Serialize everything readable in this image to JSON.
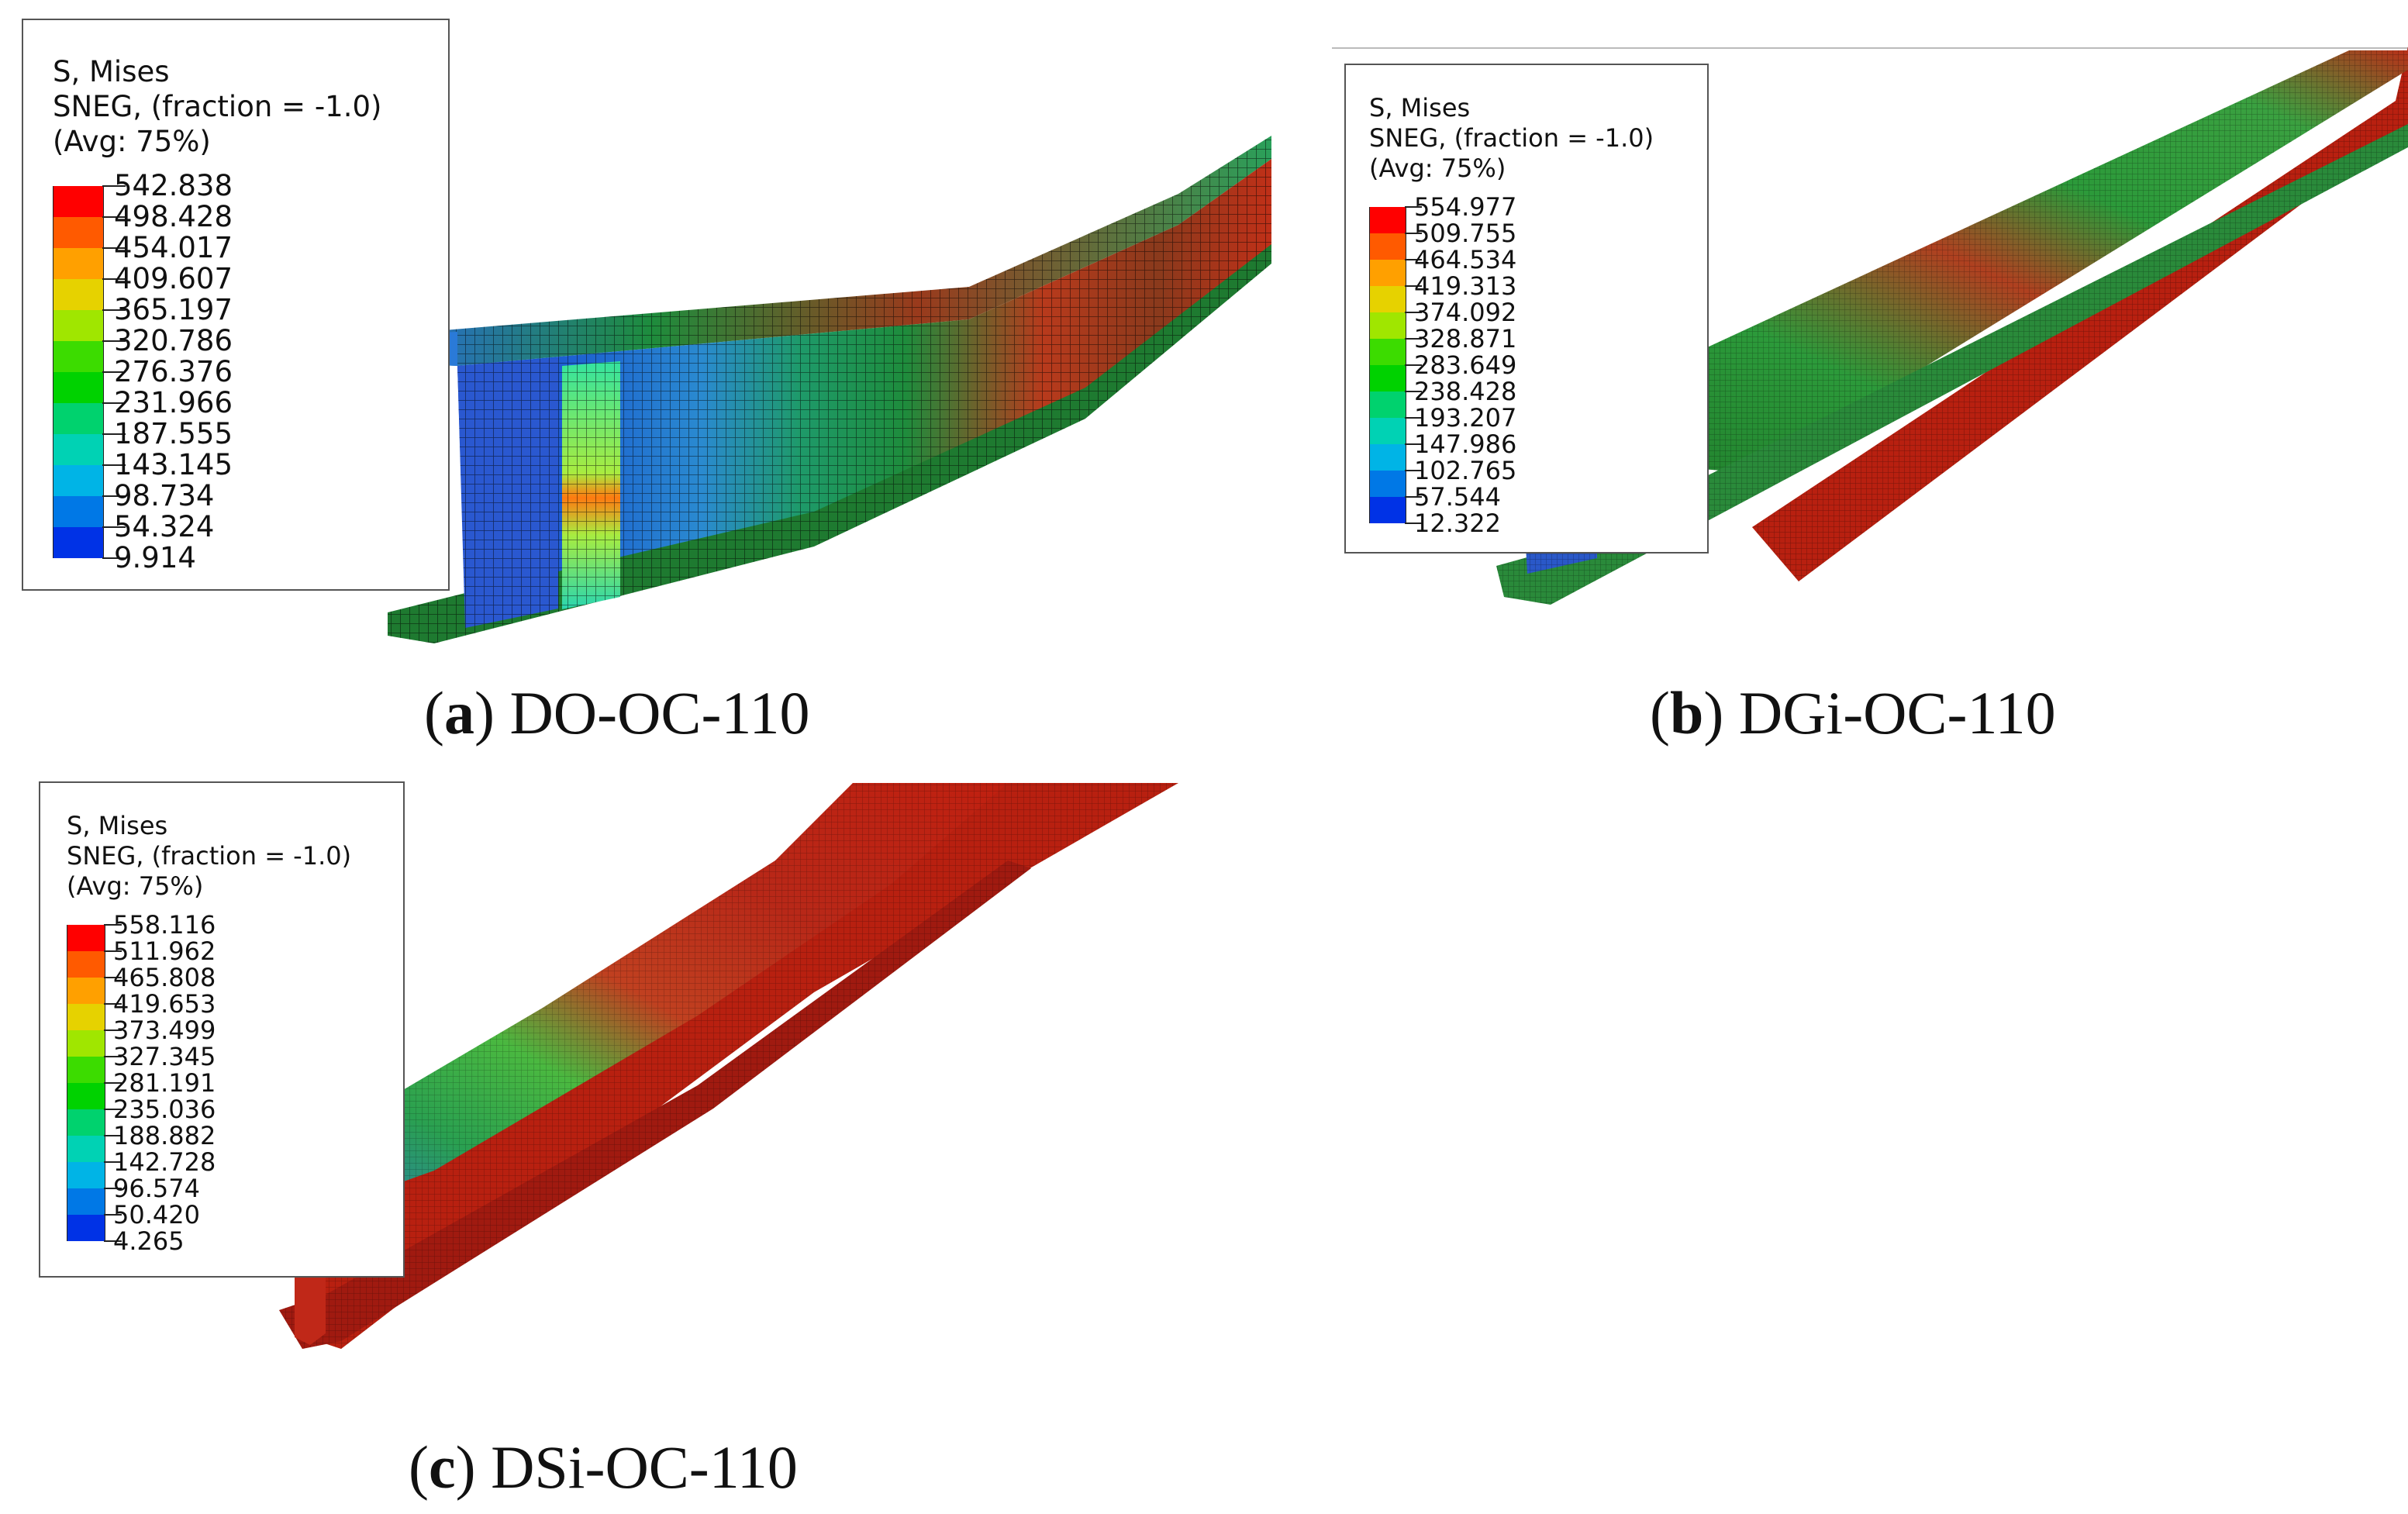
{
  "panels": [
    {
      "id": "a",
      "legend": {
        "variable": "S, Mises",
        "section": "SNEG, (fraction = -1.0)",
        "averaging": "(Avg: 75%)",
        "values": [
          "542.838",
          "498.428",
          "454.017",
          "409.607",
          "365.197",
          "320.786",
          "276.376",
          "231.966",
          "187.555",
          "143.145",
          "98.734",
          "54.324",
          "9.914"
        ]
      },
      "caption": {
        "letter": "a",
        "label": "DO-OC-110"
      }
    },
    {
      "id": "b",
      "legend": {
        "variable": "S, Mises",
        "section": "SNEG, (fraction = -1.0)",
        "averaging": "(Avg: 75%)",
        "values": [
          "554.977",
          "509.755",
          "464.534",
          "419.313",
          "374.092",
          "328.871",
          "283.649",
          "238.428",
          "193.207",
          "147.986",
          "102.765",
          "57.544",
          "12.322"
        ]
      },
      "caption": {
        "letter": "b",
        "label": "DGi-OC-110"
      }
    },
    {
      "id": "c",
      "legend": {
        "variable": "S, Mises",
        "section": "SNEG, (fraction = -1.0)",
        "averaging": "(Avg: 75%)",
        "values": [
          "558.116",
          "511.962",
          "465.808",
          "419.653",
          "373.499",
          "327.345",
          "281.191",
          "235.036",
          "188.882",
          "142.728",
          "96.574",
          "50.420",
          "4.265"
        ]
      },
      "caption": {
        "letter": "c",
        "label": "DSi-OC-110"
      }
    }
  ],
  "contour_colors": [
    "#ff0000",
    "#ff5a00",
    "#ffa000",
    "#e6d200",
    "#a0e600",
    "#3cdc00",
    "#00d200",
    "#00d26e",
    "#00d2b4",
    "#00b4e6",
    "#0078e6",
    "#0032e6",
    "#0000c8"
  ]
}
